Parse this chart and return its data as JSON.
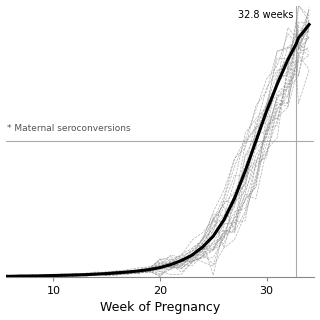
{
  "xlabel": "Week of Pregnancy",
  "annotation_text": "32.8 weeks",
  "vline_x": 32.8,
  "hline_y": 0.5,
  "label_text": "* Maternal seroconversions",
  "tick_weeks": [
    10,
    20,
    30
  ],
  "background_color": "#ffffff",
  "line_color": "#000000",
  "sim_line_color": "#888888",
  "n_simulations": 25,
  "x_min": 5.5,
  "x_max": 34.5,
  "y_min": 0.0,
  "y_max": 1.0,
  "mean_x": [
    5.5,
    6,
    7,
    8,
    9,
    10,
    11,
    12,
    13,
    14,
    15,
    16,
    17,
    18,
    19,
    20,
    21,
    22,
    23,
    24,
    25,
    26,
    27,
    28,
    29,
    30,
    31,
    32,
    32.8,
    33,
    34
  ],
  "mean_y": [
    0.002,
    0.002,
    0.003,
    0.003,
    0.004,
    0.005,
    0.006,
    0.007,
    0.008,
    0.01,
    0.012,
    0.015,
    0.018,
    0.022,
    0.027,
    0.034,
    0.045,
    0.06,
    0.08,
    0.11,
    0.15,
    0.21,
    0.29,
    0.39,
    0.5,
    0.61,
    0.71,
    0.8,
    0.86,
    0.88,
    0.93
  ]
}
